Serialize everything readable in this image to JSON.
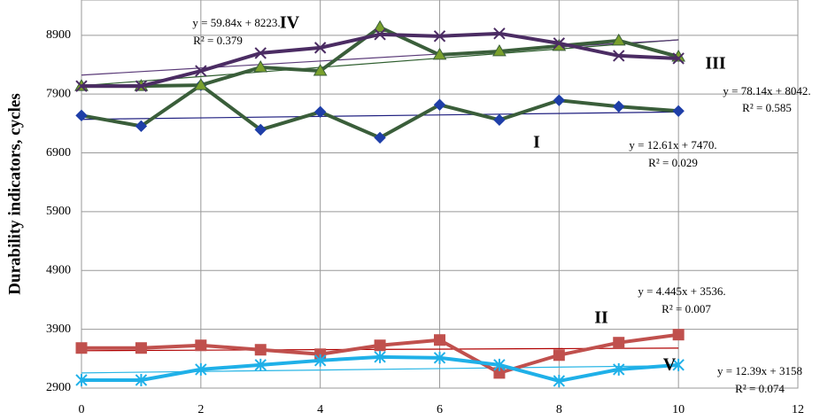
{
  "chart_data": {
    "type": "line",
    "y_label": "Durability indicators, cycles",
    "x": [
      0,
      1,
      2,
      3,
      4,
      5,
      6,
      7,
      8,
      9,
      10
    ],
    "xlim": [
      0,
      12
    ],
    "xticks": [
      0,
      2,
      4,
      6,
      8,
      10,
      12
    ],
    "ylim": [
      2900,
      9500
    ],
    "yticks": [
      2900,
      3900,
      4900,
      5900,
      6900,
      7900,
      8900
    ],
    "grid": true,
    "series": [
      {
        "name": "I",
        "color": "#3a5e3a",
        "marker": "diamond",
        "marker_color": "#1f3fa8",
        "trend_color": "#1f1f80",
        "values": [
          7536,
          7355,
          8052,
          7294,
          7597,
          7158,
          7718,
          7461,
          7794,
          7688,
          7612
        ],
        "trend": {
          "slope": 12.61,
          "intercept": 7470,
          "equation": "y = 12.61x + 7470.",
          "r2": "R² = 0.029"
        }
      },
      {
        "name": "II",
        "color": "#c0504d",
        "marker": "square",
        "marker_color": "#c0504d",
        "trend_color": "#b00000",
        "values": [
          3582,
          3582,
          3627,
          3552,
          3476,
          3627,
          3718,
          3158,
          3461,
          3673,
          3809
        ],
        "trend": {
          "slope": 4.445,
          "intercept": 3536,
          "equation": "y = 4.445x + 3536.",
          "r2": "R² = 0.007"
        }
      },
      {
        "name": "III",
        "color": "#3a5e3a",
        "marker": "triangle",
        "marker_color": "#7aa02c",
        "trend_color": "#2e5e2e",
        "values": [
          8036,
          8036,
          8052,
          8355,
          8294,
          9036,
          8567,
          8627,
          8718,
          8809,
          8536
        ],
        "trend": {
          "slope": 78.14,
          "intercept": 8042,
          "equation": "y = 78.14x + 8042.",
          "r2": "R² = 0.585"
        }
      },
      {
        "name": "IV",
        "color": "#4b2c63",
        "marker": "x",
        "marker_color": "#4b2c63",
        "trend_color": "#5a3a78",
        "values": [
          8036,
          8036,
          8294,
          8597,
          8688,
          8915,
          8885,
          8930,
          8764,
          8552,
          8506
        ],
        "trend": {
          "slope": 59.84,
          "intercept": 8223,
          "equation": "y = 59.84x + 8223.",
          "r2": "R² = 0.379"
        }
      },
      {
        "name": "V",
        "color": "#1fb0e8",
        "marker": "star",
        "marker_color": "#1fb0e8",
        "trend_color": "#27b5e5",
        "values": [
          3036,
          3036,
          3218,
          3294,
          3370,
          3430,
          3415,
          3294,
          3021,
          3218,
          3294
        ],
        "trend": {
          "slope": 12.39,
          "intercept": 3158,
          "equation": "y = 12.39x + 3158",
          "r2": "R² = 0.074"
        }
      }
    ]
  }
}
